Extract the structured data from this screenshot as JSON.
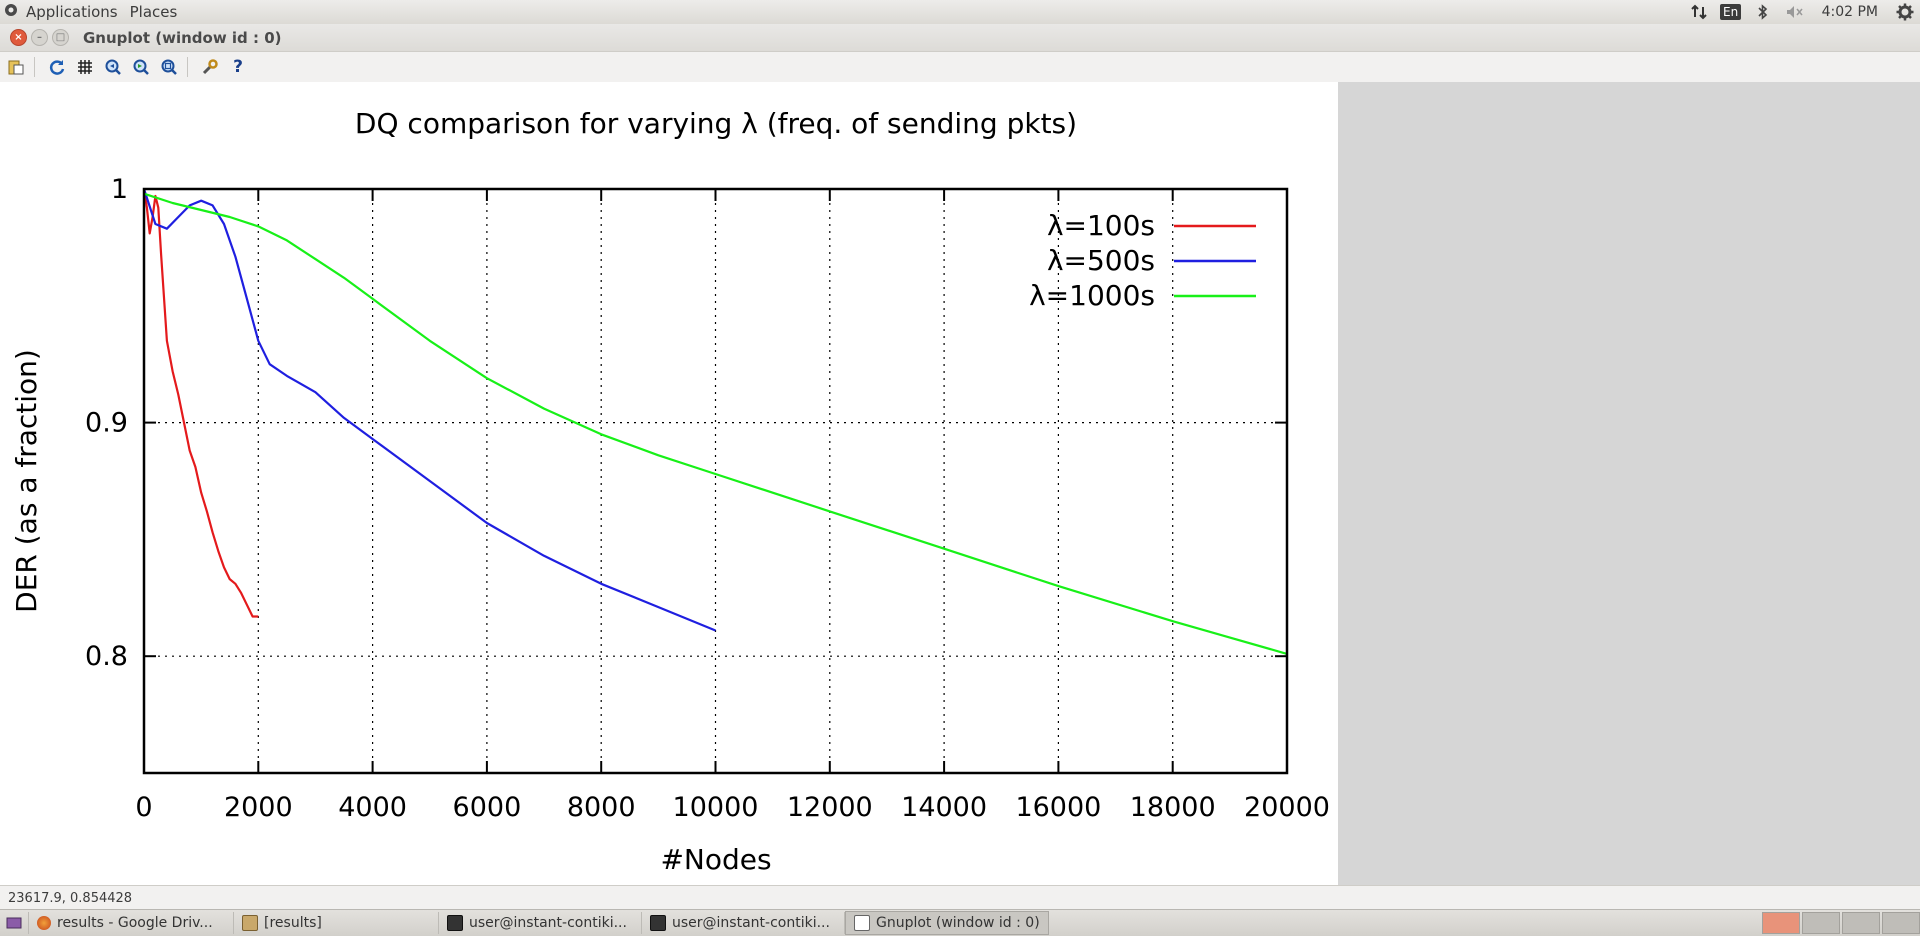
{
  "top_panel": {
    "menus": [
      "Applications",
      "Places"
    ],
    "keyboard_layout": "En",
    "clock": "4:02 PM"
  },
  "window": {
    "title": "Gnuplot (window id : 0)"
  },
  "toolbar": {
    "buttons": [
      "copy-clipboard",
      "replot",
      "grid",
      "zoom-previous",
      "zoom-next",
      "unzoom",
      "options",
      "help"
    ]
  },
  "chart_data": {
    "type": "line",
    "title": "DQ comparison for varying λ (freq. of sending pkts)",
    "xlabel": "#Nodes",
    "ylabel": "DER (as a fraction)",
    "xlim": [
      0,
      20000
    ],
    "ylim": [
      0.75,
      1.0
    ],
    "x_ticks": [
      "0",
      "2000",
      "4000",
      "6000",
      "8000",
      "10000",
      "12000",
      "14000",
      "16000",
      "18000",
      "20000"
    ],
    "y_ticks": [
      "0.8",
      "0.9",
      "1"
    ],
    "y_tick_values": [
      0.8,
      0.9,
      1.0
    ],
    "grid": true,
    "legend_position": "top-right",
    "series": [
      {
        "name": "λ=100s",
        "color": "#e41a1c",
        "x": [
          0,
          50,
          100,
          150,
          200,
          250,
          300,
          400,
          500,
          600,
          700,
          800,
          900,
          1000,
          1100,
          1200,
          1300,
          1400,
          1500,
          1600,
          1700,
          1800,
          1900,
          2000
        ],
        "y": [
          1.0,
          0.992,
          0.981,
          0.988,
          0.997,
          0.992,
          0.972,
          0.935,
          0.922,
          0.912,
          0.9,
          0.888,
          0.881,
          0.87,
          0.862,
          0.853,
          0.845,
          0.838,
          0.833,
          0.831,
          0.827,
          0.822,
          0.817,
          0.817
        ]
      },
      {
        "name": "λ=500s",
        "color": "#1f1fe0",
        "x": [
          0,
          200,
          400,
          600,
          800,
          1000,
          1200,
          1400,
          1600,
          1800,
          2000,
          2200,
          2500,
          3000,
          3500,
          4000,
          5000,
          6000,
          7000,
          8000,
          9000,
          10000
        ],
        "y": [
          1.0,
          0.985,
          0.983,
          0.988,
          0.993,
          0.995,
          0.993,
          0.985,
          0.971,
          0.953,
          0.935,
          0.925,
          0.92,
          0.913,
          0.902,
          0.893,
          0.875,
          0.857,
          0.843,
          0.831,
          0.821,
          0.811
        ]
      },
      {
        "name": "λ=1000s",
        "color": "#18f018",
        "x": [
          0,
          500,
          1000,
          1500,
          2000,
          2500,
          3000,
          3500,
          4000,
          5000,
          6000,
          7000,
          8000,
          9000,
          10000,
          12000,
          14000,
          16000,
          18000,
          20000
        ],
        "y": [
          0.998,
          0.994,
          0.991,
          0.988,
          0.984,
          0.978,
          0.97,
          0.962,
          0.953,
          0.935,
          0.919,
          0.906,
          0.895,
          0.886,
          0.878,
          0.862,
          0.846,
          0.83,
          0.815,
          0.801
        ]
      }
    ]
  },
  "status_bar": {
    "coordinates": "23617.9,  0.854428"
  },
  "taskbar": {
    "tasks": [
      {
        "label": "results - Google Driv...",
        "active": false
      },
      {
        "label": "[results]",
        "active": false
      },
      {
        "label": "user@instant-contiki...",
        "active": false
      },
      {
        "label": "user@instant-contiki...",
        "active": false
      },
      {
        "label": "Gnuplot (window id : 0)",
        "active": true
      }
    ]
  }
}
